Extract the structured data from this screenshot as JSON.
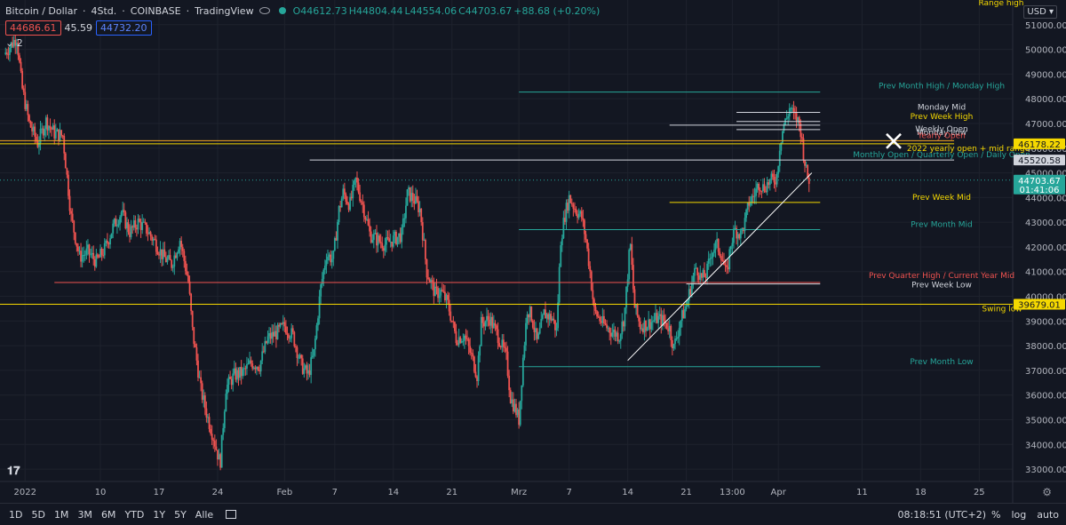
{
  "header": {
    "symbol": "Bitcoin / Dollar",
    "interval": "4Std.",
    "exchange": "COINBASE",
    "source": "TradingView",
    "open": "O44612.73",
    "high": "H44804.44",
    "low": "L44554.06",
    "close": "C44703.67",
    "change": "+88.68 (+0.20%)",
    "sell_price": "44686.61",
    "spread": "45.59",
    "buy_price": "44732.20",
    "indicator_count": "2"
  },
  "currency": "USD",
  "bottom_bar": {
    "timeframes": [
      "1D",
      "5D",
      "1M",
      "3M",
      "6M",
      "YTD",
      "1Y",
      "5Y",
      "Alle"
    ],
    "clock": "08:18:51 (UTC+2)",
    "percent": "%",
    "log": "log",
    "auto": "auto"
  },
  "colors": {
    "background": "#131722",
    "up": "#26a69a",
    "down": "#ef5350",
    "yellow": "#f5d800",
    "orange": "#f5a623",
    "text": "#d1d4dc"
  },
  "chart_data": {
    "type": "candlestick",
    "title": "Bitcoin / Dollar 4Std. COINBASE",
    "ylim": [
      32500,
      52000
    ],
    "y_ticks": [
      33000,
      34000,
      35000,
      36000,
      37000,
      38000,
      39000,
      40000,
      41000,
      42000,
      43000,
      44000,
      45000,
      46000,
      47000,
      48000,
      49000,
      50000,
      51000
    ],
    "x_ticks": [
      {
        "label": "2022",
        "day": 1
      },
      {
        "label": "10",
        "day": 10
      },
      {
        "label": "17",
        "day": 17
      },
      {
        "label": "24",
        "day": 24
      },
      {
        "label": "Feb",
        "day": 32
      },
      {
        "label": "7",
        "day": 38
      },
      {
        "label": "14",
        "day": 45
      },
      {
        "label": "21",
        "day": 52
      },
      {
        "label": "Mrz",
        "day": 60
      },
      {
        "label": "7",
        "day": 66
      },
      {
        "label": "14",
        "day": 73
      },
      {
        "label": "21",
        "day": 80
      },
      {
        "label": "13:00",
        "day": 85.5
      },
      {
        "label": "Apr",
        "day": 91
      },
      {
        "label": "11",
        "day": 101
      },
      {
        "label": "18",
        "day": 108
      },
      {
        "label": "25",
        "day": 115
      }
    ],
    "x_range_days": [
      -2,
      119
    ],
    "price_path": [
      [
        -1.5,
        49800
      ],
      [
        0,
        50500
      ],
      [
        0.6,
        48500
      ],
      [
        1.5,
        47000
      ],
      [
        2.5,
        46200
      ],
      [
        3.5,
        47100
      ],
      [
        4.5,
        46600
      ],
      [
        5.5,
        46500
      ],
      [
        6.5,
        43200
      ],
      [
        7.5,
        41600
      ],
      [
        8.5,
        41800
      ],
      [
        9.5,
        41400
      ],
      [
        10.5,
        41900
      ],
      [
        11.5,
        42800
      ],
      [
        12.5,
        43400
      ],
      [
        13.5,
        42600
      ],
      [
        14.5,
        43000
      ],
      [
        15.5,
        42700
      ],
      [
        16.5,
        42200
      ],
      [
        17.5,
        41600
      ],
      [
        18.5,
        41300
      ],
      [
        19.5,
        42300
      ],
      [
        20.5,
        40600
      ],
      [
        21,
        38600
      ],
      [
        22,
        36200
      ],
      [
        22.8,
        35100
      ],
      [
        23.5,
        34300
      ],
      [
        24.3,
        33200
      ],
      [
        25,
        36300
      ],
      [
        26,
        36800
      ],
      [
        27,
        36900
      ],
      [
        28,
        37300
      ],
      [
        29,
        37200
      ],
      [
        30,
        38300
      ],
      [
        31,
        38500
      ],
      [
        32,
        38800
      ],
      [
        33,
        38400
      ],
      [
        34,
        37200
      ],
      [
        34.8,
        36800
      ],
      [
        35.5,
        37700
      ],
      [
        36.3,
        40300
      ],
      [
        37,
        41700
      ],
      [
        37.8,
        41500
      ],
      [
        38.5,
        43500
      ],
      [
        39,
        44200
      ],
      [
        39.8,
        43700
      ],
      [
        40.5,
        44700
      ],
      [
        41.5,
        43500
      ],
      [
        42.2,
        42500
      ],
      [
        43,
        42300
      ],
      [
        44,
        42100
      ],
      [
        45,
        42300
      ],
      [
        46,
        42500
      ],
      [
        46.7,
        44200
      ],
      [
        47.5,
        43900
      ],
      [
        48.2,
        43500
      ],
      [
        49,
        41000
      ],
      [
        50,
        40100
      ],
      [
        50.7,
        40200
      ],
      [
        51.5,
        39700
      ],
      [
        52.5,
        38300
      ],
      [
        53.5,
        38400
      ],
      [
        54.5,
        37400
      ],
      [
        55,
        36800
      ],
      [
        55.5,
        38900
      ],
      [
        56.5,
        39100
      ],
      [
        57.5,
        38400
      ],
      [
        58.5,
        37500
      ],
      [
        59,
        35900
      ],
      [
        59.6,
        35400
      ],
      [
        60,
        35000
      ],
      [
        60.5,
        37500
      ],
      [
        61,
        39500
      ],
      [
        61.5,
        39200
      ],
      [
        62.2,
        38100
      ],
      [
        63,
        39300
      ],
      [
        64,
        39100
      ],
      [
        64.5,
        38600
      ],
      [
        65,
        42300
      ],
      [
        65.5,
        43300
      ],
      [
        66,
        44000
      ],
      [
        66.8,
        43500
      ],
      [
        67.5,
        43200
      ],
      [
        68,
        42300
      ],
      [
        68.5,
        41000
      ],
      [
        69,
        39400
      ],
      [
        70,
        38900
      ],
      [
        71,
        38600
      ],
      [
        72,
        38400
      ],
      [
        72.6,
        39200
      ],
      [
        73.3,
        42200
      ],
      [
        73.8,
        39600
      ],
      [
        74.5,
        38800
      ],
      [
        75.5,
        38900
      ],
      [
        76.5,
        39100
      ],
      [
        77.3,
        39000
      ],
      [
        78,
        38700
      ],
      [
        78.5,
        37900
      ],
      [
        79.3,
        39000
      ],
      [
        80,
        39600
      ],
      [
        80.6,
        40500
      ],
      [
        81.2,
        41200
      ],
      [
        81.8,
        40700
      ],
      [
        82.4,
        40900
      ],
      [
        83,
        41800
      ],
      [
        83.6,
        42100
      ],
      [
        84.2,
        41700
      ],
      [
        84.8,
        40800
      ],
      [
        85.3,
        42100
      ],
      [
        85.8,
        42700
      ],
      [
        86.5,
        42500
      ],
      [
        87,
        43000
      ],
      [
        87.5,
        43800
      ],
      [
        88.1,
        44100
      ],
      [
        88.7,
        44600
      ],
      [
        89.2,
        44400
      ],
      [
        89.8,
        44600
      ],
      [
        90.3,
        44700
      ],
      [
        90.8,
        44800
      ],
      [
        91.2,
        46200
      ],
      [
        91.6,
        46900
      ],
      [
        92,
        47200
      ],
      [
        92.4,
        47700
      ],
      [
        92.8,
        47300
      ],
      [
        93.2,
        47200
      ],
      [
        93.6,
        46900
      ],
      [
        94,
        45800
      ],
      [
        94.4,
        44900
      ],
      [
        94.7,
        44703.67
      ]
    ],
    "levels": [
      {
        "label": "Prev Month High / Monday High",
        "price": 48270,
        "from_day": 60,
        "to_day": 96,
        "color": "#26a69a",
        "label_color": "#26a69a"
      },
      {
        "label": "Monday Mid",
        "price": 47450,
        "from_day": 86,
        "to_day": 96,
        "color": "#d1d4dc",
        "label_color": "#d1d4dc"
      },
      {
        "label": "Prev Week High",
        "price": 47080,
        "from_day": 86,
        "to_day": 96,
        "color": "#d1d4dc",
        "label_color": "#f5d800"
      },
      {
        "label": "Weekly Open",
        "price": 46930,
        "from_day": 78,
        "to_day": 96,
        "color": "#d1d4dc",
        "label_color": "#d1d4dc"
      },
      {
        "label": "Monday Low",
        "price": 46750,
        "from_day": 86,
        "to_day": 96,
        "color": "#d1d4dc",
        "label_color": "#d1d4dc"
      },
      {
        "label": "Yearly Open",
        "price": 46300,
        "from_day": -2,
        "to_day": 112,
        "color": "#f5a623",
        "label_color": "#ef5350"
      },
      {
        "label": "2022 yearly open + mid range",
        "price": 46178.22,
        "from_day": -2,
        "to_day": 112,
        "color": "#f5d800",
        "label_color": "#f5d800"
      },
      {
        "label": "Monthly Open / Quarterly Open / Daily Open",
        "price": 45520.58,
        "from_day": 35,
        "to_day": 112,
        "color": "#d1d4dc",
        "label_color": "#26a69a"
      },
      {
        "label": "Prev Week Mid",
        "price": 43800,
        "from_day": 78,
        "to_day": 96,
        "color": "#f5d800",
        "label_color": "#f5d800"
      },
      {
        "label": "Prev Month Mid",
        "price": 42700,
        "from_day": 60,
        "to_day": 96,
        "color": "#26a69a",
        "label_color": "#26a69a"
      },
      {
        "label": "Prev Quarter High / Current Year Mid",
        "price": 40560,
        "from_day": 4.5,
        "to_day": 96,
        "color": "#ef5350",
        "label_color": "#ef5350"
      },
      {
        "label": "Prev Week Low",
        "price": 40500,
        "from_day": 80,
        "to_day": 96,
        "color": "#d1d4dc",
        "label_color": "#d1d4dc"
      },
      {
        "label": "Swing low",
        "price": 39679.01,
        "from_day": -2,
        "to_day": 119,
        "color": "#f5d800",
        "label_color": "#f5d800"
      },
      {
        "label": "Prev Month Low",
        "price": 37150,
        "from_day": 60,
        "to_day": 96,
        "color": "#26a69a",
        "label_color": "#26a69a"
      }
    ],
    "range_high_label": "Range high",
    "trendline": {
      "from": [
        73,
        37400
      ],
      "to": [
        95,
        45000
      ]
    },
    "price_tags": [
      {
        "price": 46178.22,
        "text": "46178.22",
        "bg": "#f5d800",
        "fg": "#131722"
      },
      {
        "price": 45520.58,
        "text": "45520.58",
        "bg": "#d1d4dc",
        "fg": "#131722"
      },
      {
        "price": 44703.67,
        "text": "44703.67",
        "sub": "01:41:06",
        "bg": "#26a69a",
        "fg": "#ffffff"
      },
      {
        "price": 39679.01,
        "text": "39679.01",
        "bg": "#f5d800",
        "fg": "#131722"
      }
    ],
    "current_price": 44703.67,
    "countdown": "01:41:06"
  }
}
